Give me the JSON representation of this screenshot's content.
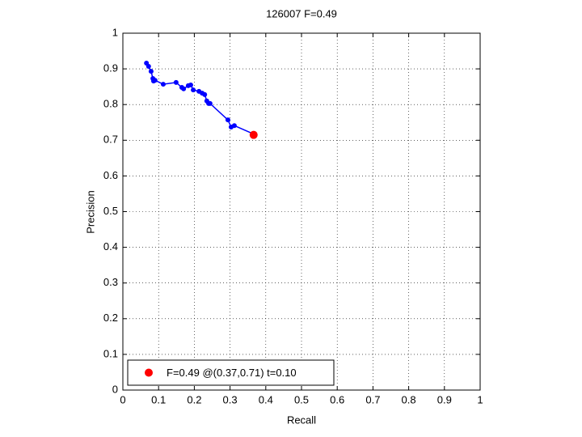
{
  "chart_data": {
    "type": "line",
    "title": "126007 F=0.49",
    "xlabel": "Recall",
    "ylabel": "Precision",
    "xlim": [
      0,
      1
    ],
    "ylim": [
      0,
      1
    ],
    "xticks": [
      0,
      0.1,
      0.2,
      0.3,
      0.4,
      0.5,
      0.6,
      0.7,
      0.8,
      0.9,
      1
    ],
    "yticks": [
      0,
      0.1,
      0.2,
      0.3,
      0.4,
      0.5,
      0.6,
      0.7,
      0.8,
      0.9,
      1
    ],
    "grid": true,
    "legend": "lower left",
    "series": [
      {
        "color": "#0000ff",
        "x": [
          0.066,
          0.072,
          0.079,
          0.084,
          0.086,
          0.09,
          0.113,
          0.149,
          0.165,
          0.17,
          0.183,
          0.19,
          0.197,
          0.213,
          0.222,
          0.229,
          0.235,
          0.24,
          0.244,
          0.294,
          0.303,
          0.312,
          0.367
        ],
        "values": [
          0.916,
          0.907,
          0.893,
          0.873,
          0.866,
          0.868,
          0.857,
          0.862,
          0.848,
          0.844,
          0.853,
          0.855,
          0.841,
          0.837,
          0.832,
          0.828,
          0.81,
          0.803,
          0.803,
          0.757,
          0.737,
          0.741,
          0.717
        ]
      },
      {
        "name": "F=0.49 @(0.37,0.71) t=0.10",
        "color": "#ff0000",
        "x": [
          0.366
        ],
        "values": [
          0.715
        ]
      }
    ]
  }
}
